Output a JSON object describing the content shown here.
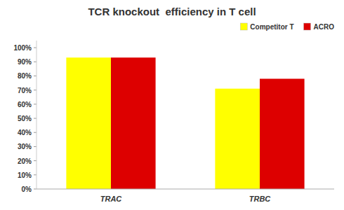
{
  "chart_data": {
    "type": "bar",
    "title": "TCR knockout  efficiency in T cell",
    "categories": [
      "TRAC",
      "TRBC"
    ],
    "series": [
      {
        "name": "Competitor T",
        "color": "#FFFF00",
        "values": [
          0.93,
          0.71
        ]
      },
      {
        "name": "ACRO",
        "color": "#DD0000",
        "values": [
          0.93,
          0.78
        ]
      }
    ],
    "ylim": [
      0,
      1.05
    ],
    "yticks": [
      {
        "value": 0.0,
        "label": "0%"
      },
      {
        "value": 0.1,
        "label": "10%"
      },
      {
        "value": 0.2,
        "label": "20%"
      },
      {
        "value": 0.3,
        "label": "30%"
      },
      {
        "value": 0.4,
        "label": "40%"
      },
      {
        "value": 0.5,
        "label": "50%"
      },
      {
        "value": 0.6,
        "label": "60%"
      },
      {
        "value": 0.7,
        "label": "70%"
      },
      {
        "value": 0.8,
        "label": "80%"
      },
      {
        "value": 0.9,
        "label": "90%"
      },
      {
        "value": 1.0,
        "label": "100%"
      }
    ],
    "grid": false,
    "legend": "upper right"
  }
}
